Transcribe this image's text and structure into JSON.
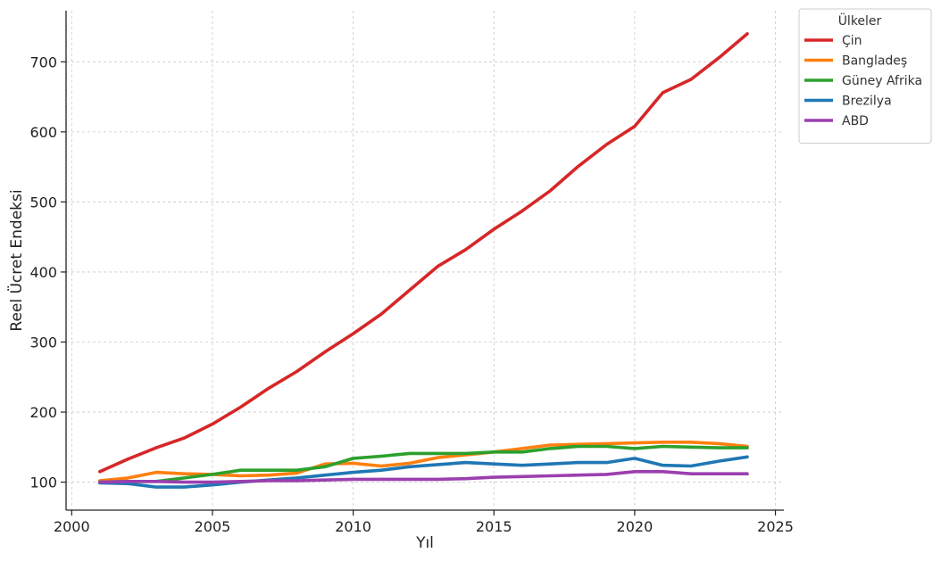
{
  "chart_data": {
    "type": "line",
    "title": "",
    "xlabel": "Yıl",
    "ylabel": "Reel Ücret Endeksi",
    "xlim": [
      1999.8,
      2025.3
    ],
    "ylim": [
      60,
      773
    ],
    "xticks": [
      2000,
      2005,
      2010,
      2015,
      2020,
      2025
    ],
    "yticks": [
      100,
      200,
      300,
      400,
      500,
      600,
      700
    ],
    "grid": true,
    "legend": {
      "title": "Ülkeler",
      "position": "outside-top-right"
    },
    "x": [
      2001,
      2002,
      2003,
      2004,
      2005,
      2006,
      2007,
      2008,
      2009,
      2010,
      2011,
      2012,
      2013,
      2014,
      2015,
      2016,
      2017,
      2018,
      2019,
      2020,
      2021,
      2022,
      2023,
      2024
    ],
    "series": [
      {
        "name": "Çin",
        "color": "#d62728",
        "values": [
          115,
          133,
          149,
          163,
          183,
          207,
          234,
          258,
          286,
          312,
          340,
          374,
          408,
          432,
          461,
          487,
          516,
          551,
          582,
          608,
          656,
          675,
          706,
          740
        ]
      },
      {
        "name": "Bangladeş",
        "color": "#ff7f0e",
        "values": [
          102,
          106,
          114,
          112,
          111,
          109,
          110,
          113,
          126,
          127,
          123,
          127,
          135,
          139,
          143,
          148,
          153,
          154,
          155,
          156,
          157,
          157,
          155,
          151
        ]
      },
      {
        "name": "Güney Afrika",
        "color": "#2ca02c",
        "values": [
          100,
          101,
          101,
          106,
          111,
          117,
          117,
          117,
          122,
          134,
          137,
          141,
          141,
          141,
          143,
          143,
          148,
          151,
          151,
          148,
          151,
          150,
          149,
          149
        ]
      },
      {
        "name": "Brezilya",
        "color": "#1f77b4",
        "values": [
          99,
          98,
          93,
          93,
          96,
          100,
          103,
          106,
          110,
          114,
          117,
          122,
          125,
          128,
          126,
          124,
          126,
          128,
          128,
          134,
          124,
          123,
          130,
          136
        ]
      },
      {
        "name": "ABD",
        "color": "#9b3faf",
        "values": [
          100,
          101,
          101,
          100,
          100,
          101,
          102,
          102,
          103,
          104,
          104,
          104,
          104,
          105,
          107,
          108,
          109,
          110,
          111,
          115,
          115,
          112,
          112,
          112
        ]
      }
    ]
  }
}
